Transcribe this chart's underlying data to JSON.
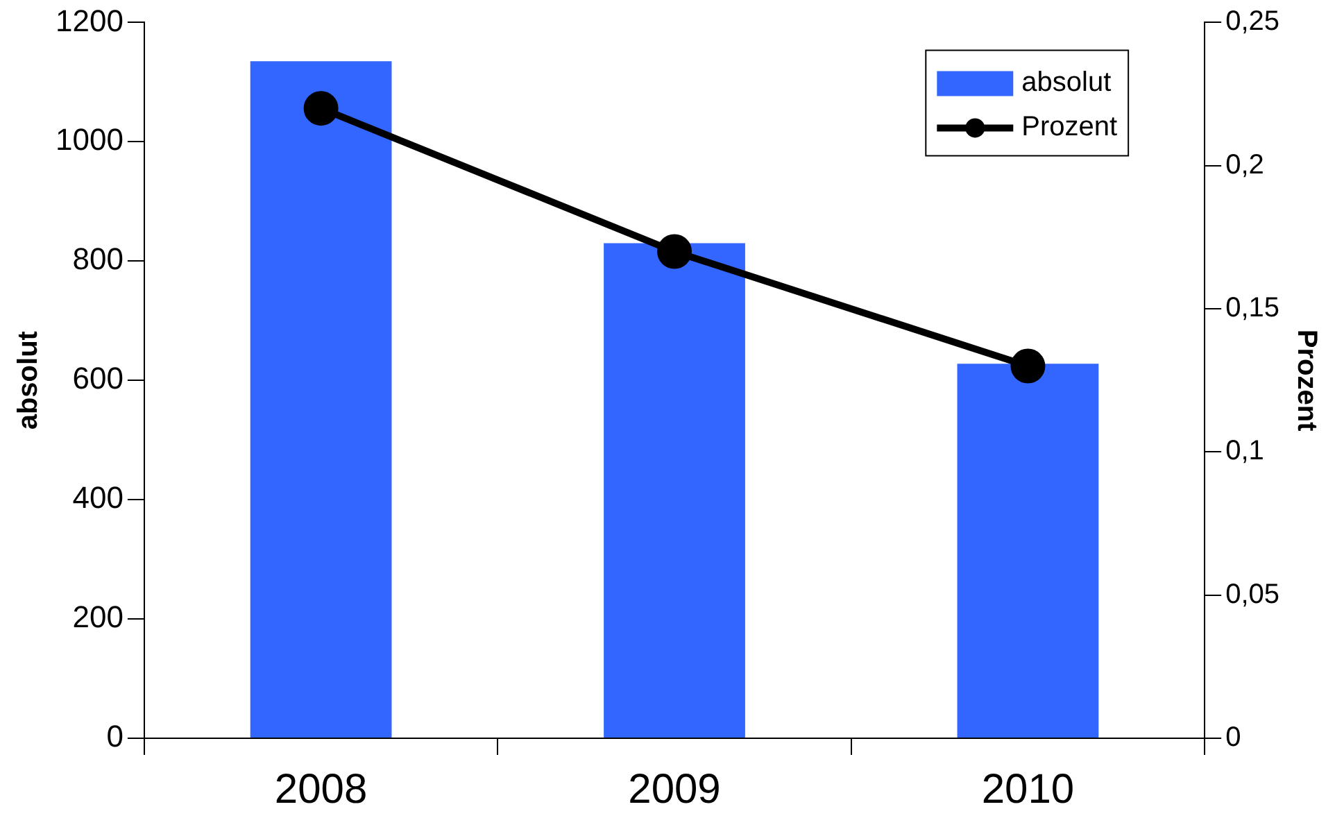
{
  "chart_data": {
    "type": "bar",
    "ylabel": "absolut",
    "y2label": "Prozent",
    "categories": [
      "2008",
      "2009",
      "2010"
    ],
    "series": [
      {
        "name": "absolut",
        "color": "#3366ff",
        "values": [
          1135,
          830,
          628
        ]
      },
      {
        "name": "Prozent",
        "type": "line",
        "axis": "y2",
        "color": "#000000",
        "values": [
          0.22,
          0.17,
          0.13
        ],
        "marker": "circle",
        "line_style": "solid"
      }
    ],
    "ylim": [
      0,
      1200
    ],
    "yticks": [
      0,
      200,
      400,
      600,
      800,
      1000,
      1200
    ],
    "y2lim": [
      0,
      0.25
    ],
    "y2ticks": [
      {
        "value": 0,
        "label": "0"
      },
      {
        "value": 0.05,
        "label": "0,05"
      },
      {
        "value": 0.1,
        "label": "0,1"
      },
      {
        "value": 0.15,
        "label": "0,15"
      },
      {
        "value": 0.2,
        "label": "0,2"
      },
      {
        "value": 0.25,
        "label": "0,25"
      }
    ],
    "grid": false,
    "legend": "top right"
  }
}
